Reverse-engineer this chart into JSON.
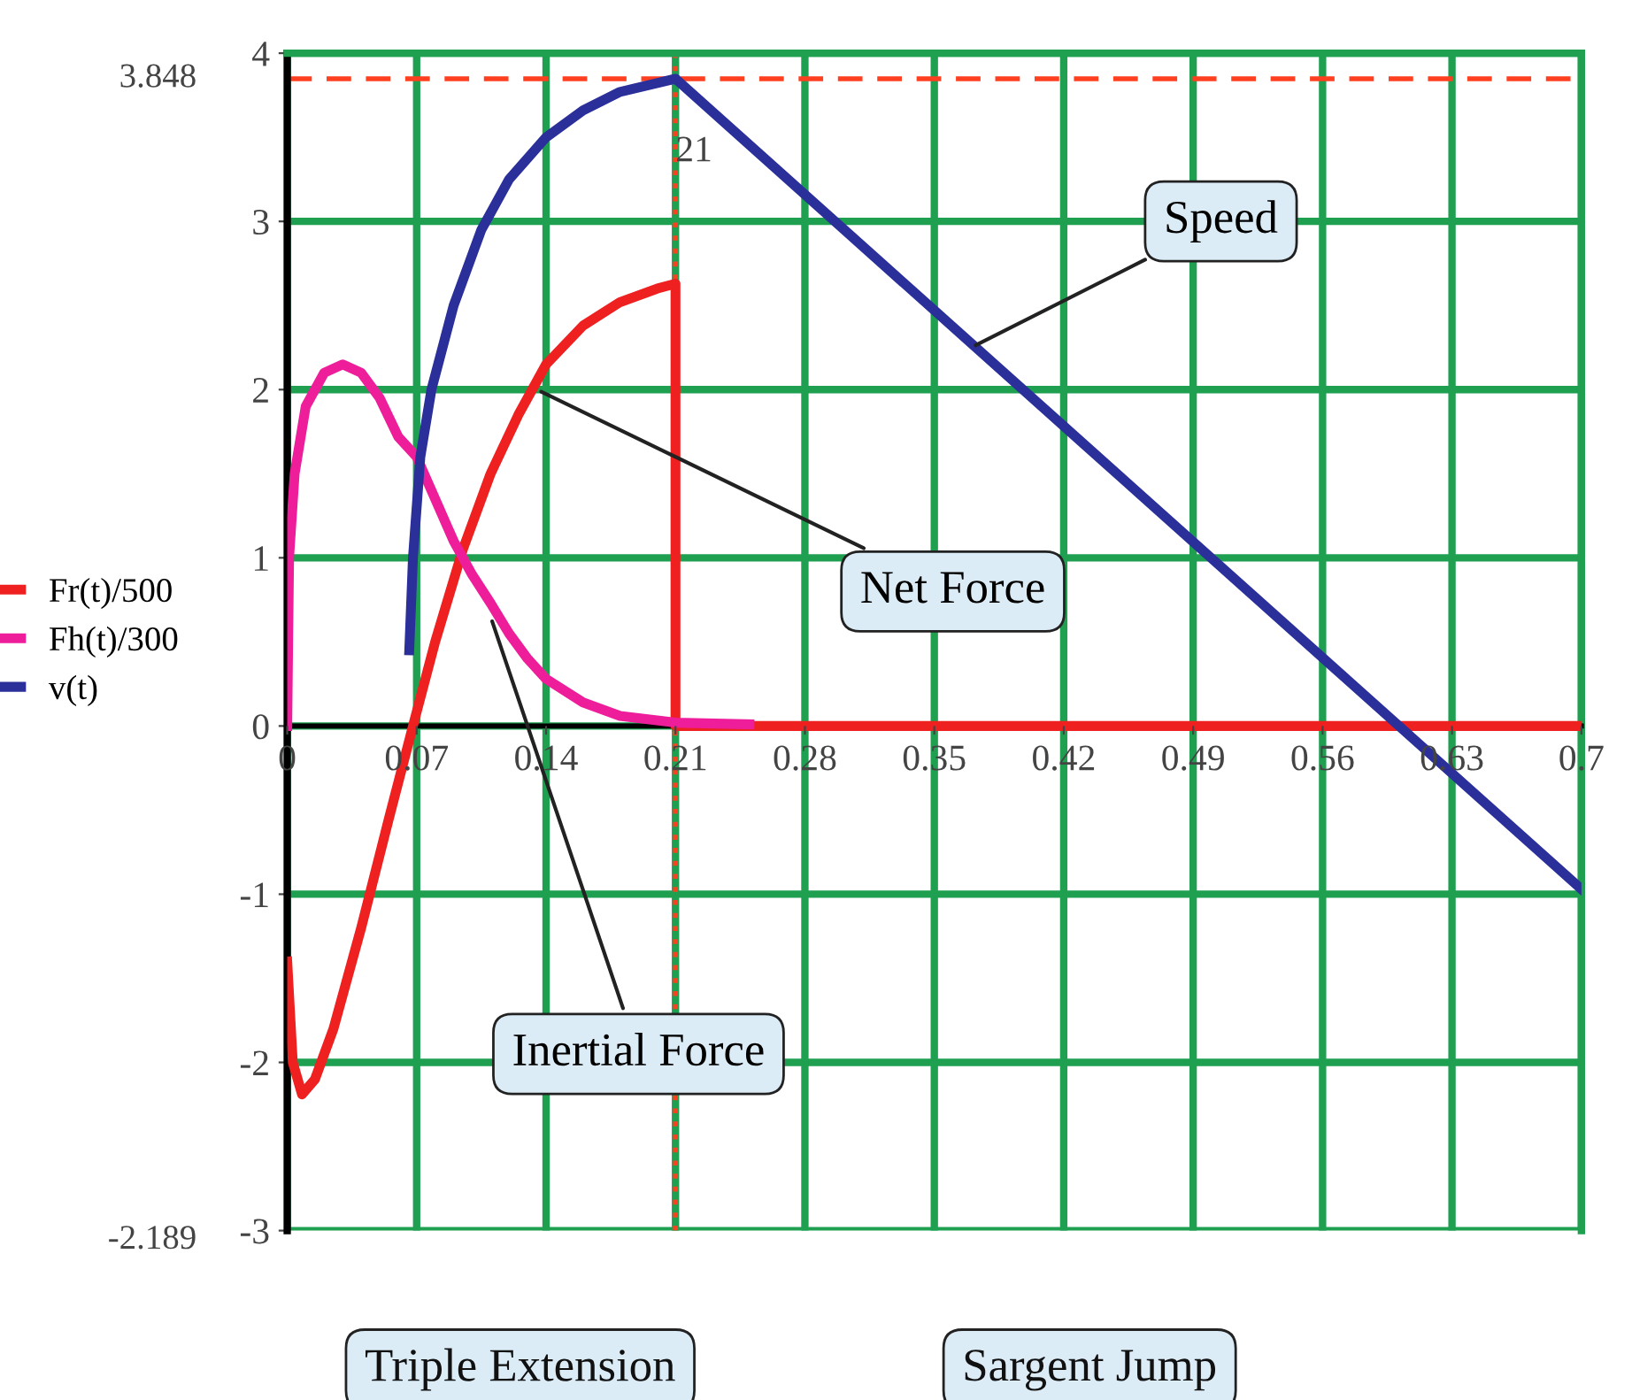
{
  "chart_data": {
    "type": "line",
    "xlim": [
      0,
      0.7
    ],
    "ylim": [
      -3,
      4
    ],
    "xticks": [
      0,
      0.07,
      0.14,
      0.21,
      0.28,
      0.35,
      0.42,
      0.49,
      0.56,
      0.63,
      0.7
    ],
    "yticks": [
      -3,
      -2,
      -1,
      0,
      1,
      2,
      3,
      4
    ],
    "grid": true,
    "legend": "left",
    "marker": "none",
    "line_style": "solid",
    "series": [
      {
        "name": "Fr(t)/500",
        "color": "#ee2020",
        "x": [
          0,
          0.003,
          0.008,
          0.015,
          0.025,
          0.04,
          0.055,
          0.068,
          0.08,
          0.095,
          0.11,
          0.125,
          0.14,
          0.16,
          0.18,
          0.2,
          0.21,
          0.21,
          0.7
        ],
        "values": [
          -1.4,
          -2.0,
          -2.19,
          -2.1,
          -1.8,
          -1.2,
          -0.55,
          0,
          0.5,
          1.05,
          1.5,
          1.85,
          2.15,
          2.38,
          2.52,
          2.6,
          2.63,
          0,
          0
        ]
      },
      {
        "name": "Fh(t)/300",
        "color": "#ee1e9a",
        "x": [
          0,
          0.001,
          0.004,
          0.01,
          0.02,
          0.03,
          0.04,
          0.05,
          0.06,
          0.07,
          0.08,
          0.09,
          0.1,
          0.11,
          0.12,
          0.13,
          0.14,
          0.16,
          0.18,
          0.21,
          0.25
        ],
        "values": [
          0,
          1.0,
          1.5,
          1.9,
          2.1,
          2.15,
          2.1,
          1.95,
          1.72,
          1.6,
          1.35,
          1.1,
          0.9,
          0.73,
          0.55,
          0.4,
          0.28,
          0.14,
          0.06,
          0.02,
          0.01
        ]
      },
      {
        "name": "v(t)",
        "color": "#2b2f9a",
        "x": [
          0.066,
          0.068,
          0.072,
          0.078,
          0.09,
          0.105,
          0.12,
          0.14,
          0.16,
          0.18,
          0.21,
          0.7
        ],
        "values": [
          0.45,
          1.0,
          1.6,
          2.0,
          2.5,
          2.95,
          3.25,
          3.5,
          3.66,
          3.77,
          3.848,
          -0.97
        ]
      }
    ],
    "ref_lines": [
      {
        "axis": "y",
        "value": 3.848,
        "label": "3.848",
        "color": "#ff4020",
        "line_style": "dashed"
      },
      {
        "axis": "x",
        "value": 0.21,
        "label": "21",
        "color": "#ff4020",
        "line_style": "dotted"
      }
    ],
    "annotations": [
      {
        "text": "Speed",
        "x": 0.37,
        "y": 2.25
      },
      {
        "text": "Net Force",
        "x": 0.135,
        "y": 2.0
      },
      {
        "text": "Inertial Force",
        "x": 0.11,
        "y": 0.65
      },
      "-2.189",
      "Triple Extension",
      "Sargent Jump"
    ]
  }
}
